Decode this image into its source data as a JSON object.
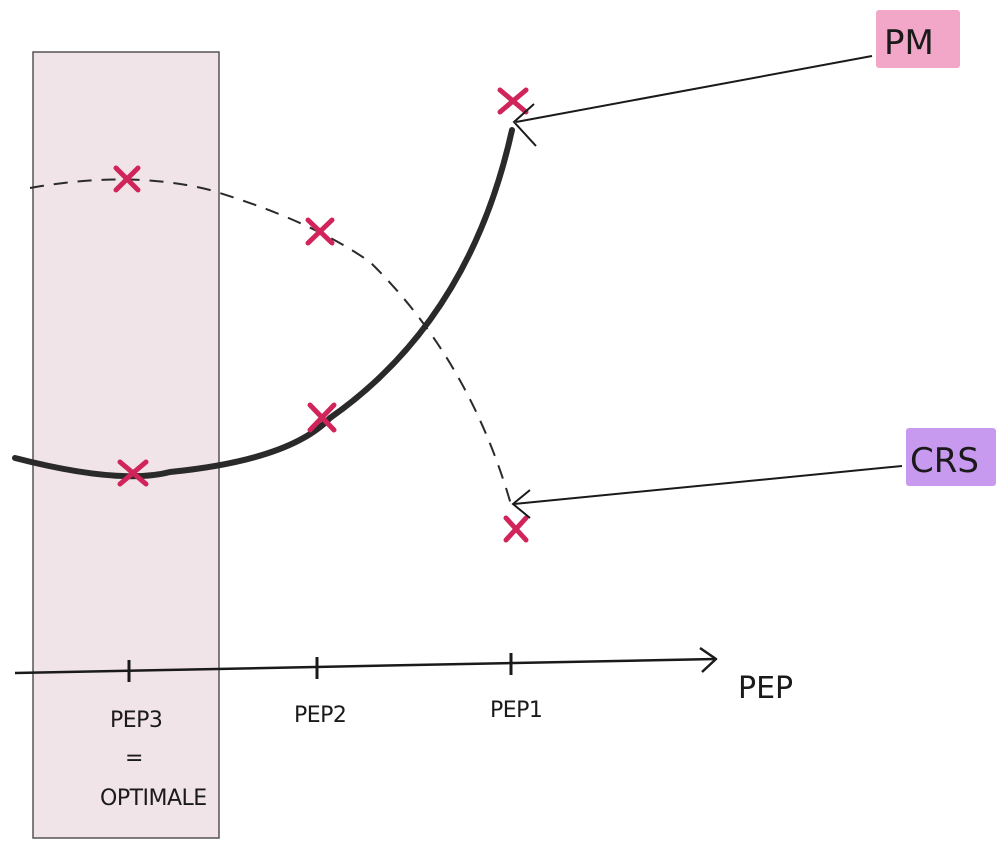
{
  "axis": {
    "name": "PEP",
    "ticks": [
      {
        "key": "pep3",
        "label": "PEP3"
      },
      {
        "key": "pep2",
        "label": "PEP2"
      },
      {
        "key": "pep1",
        "label": "PEP1"
      }
    ],
    "optimal_eq": "=",
    "optimal_label": "OPTIMALE"
  },
  "legend": {
    "pm": {
      "label": "PM",
      "color": "#f2a7c9"
    },
    "crs": {
      "label": "CRS",
      "color": "#c79af0"
    }
  },
  "colors": {
    "curve": "#2a2a2a",
    "marker": "#d0245a",
    "band": "#f1e4e8",
    "ink": "#1a1a1a"
  }
}
